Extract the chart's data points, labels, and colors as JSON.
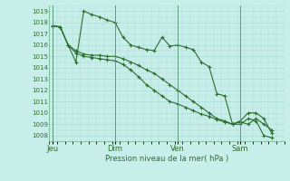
{
  "background_color": "#c8eeea",
  "grid_color": "#a8ddd8",
  "line_color": "#2d6e2d",
  "ylim": [
    1007.5,
    1019.5
  ],
  "ylabel_ticks": [
    1008,
    1009,
    1010,
    1011,
    1012,
    1013,
    1014,
    1015,
    1016,
    1017,
    1018,
    1019
  ],
  "xlabel": "Pression niveau de la mer( hPa )",
  "xtick_labels": [
    "Jeu",
    "Dim",
    "Ven",
    "Sam"
  ],
  "xtick_positions": [
    0,
    4,
    8,
    12
  ],
  "xlim": [
    -0.2,
    14.5
  ],
  "vlines": [
    0,
    4,
    8,
    12
  ],
  "series1": {
    "x": [
      0,
      0.5,
      1,
      1.5,
      2,
      2.5,
      3,
      3.5,
      4,
      4.5,
      5,
      5.5,
      6,
      6.5,
      7,
      7.5,
      8,
      8.5,
      9,
      9.5,
      10,
      10.5,
      11,
      11.5,
      12,
      12.5,
      13,
      13.5,
      14
    ],
    "y": [
      1017.7,
      1017.6,
      1016.0,
      1014.5,
      1019.0,
      1018.7,
      1018.5,
      1018.2,
      1018.0,
      1016.7,
      1016.0,
      1015.8,
      1015.6,
      1015.5,
      1016.7,
      1015.9,
      1016.0,
      1015.8,
      1015.6,
      1014.5,
      1014.1,
      1011.7,
      1011.5,
      1009.0,
      1009.0,
      1009.5,
      1009.3,
      1008.0,
      1007.8
    ]
  },
  "series2": {
    "x": [
      0,
      0.5,
      1,
      1.5,
      2,
      2.5,
      3,
      3.5,
      4,
      4.5,
      5,
      5.5,
      6,
      6.5,
      7,
      7.5,
      8,
      8.5,
      9,
      9.5,
      10,
      10.5,
      11,
      11.5,
      12,
      12.5,
      13,
      13.5,
      14
    ],
    "y": [
      1017.7,
      1017.6,
      1016.0,
      1015.5,
      1015.2,
      1015.1,
      1015.1,
      1015.0,
      1015.0,
      1014.8,
      1014.5,
      1014.2,
      1013.8,
      1013.5,
      1013.0,
      1012.5,
      1012.0,
      1011.5,
      1011.0,
      1010.5,
      1010.0,
      1009.5,
      1009.3,
      1009.0,
      1009.2,
      1009.0,
      1009.5,
      1009.0,
      1008.5
    ]
  },
  "series3": {
    "x": [
      0,
      0.5,
      1,
      1.5,
      2,
      2.5,
      3,
      3.5,
      4,
      4.5,
      5,
      5.5,
      6,
      6.5,
      7,
      7.5,
      8,
      8.5,
      9,
      9.5,
      10,
      10.5,
      11,
      11.5,
      12,
      12.5,
      13,
      13.5,
      14
    ],
    "y": [
      1017.7,
      1017.6,
      1016.0,
      1015.3,
      1015.0,
      1014.9,
      1014.8,
      1014.7,
      1014.6,
      1014.3,
      1013.8,
      1013.2,
      1012.5,
      1012.0,
      1011.5,
      1011.0,
      1010.8,
      1010.5,
      1010.2,
      1009.9,
      1009.7,
      1009.4,
      1009.2,
      1009.0,
      1009.3,
      1010.0,
      1010.0,
      1009.5,
      1008.2
    ]
  }
}
